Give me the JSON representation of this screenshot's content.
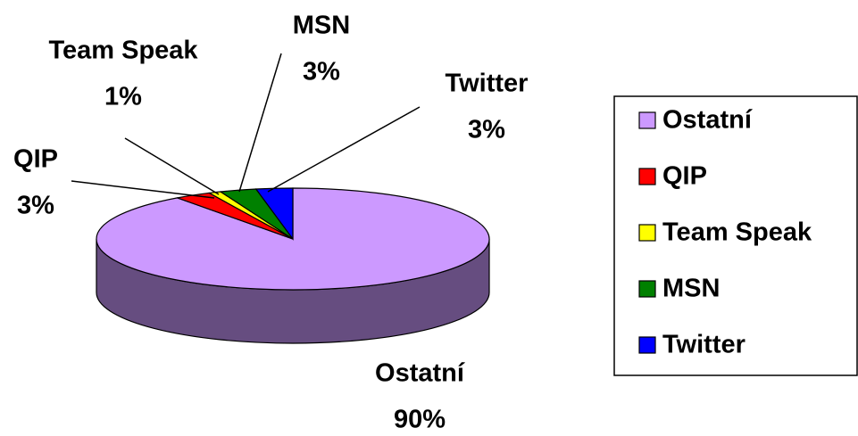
{
  "chart_data": {
    "type": "pie",
    "categories": [
      "Ostatní",
      "QIP",
      "Team Speak",
      "MSN",
      "Twitter"
    ],
    "values": [
      90,
      3,
      1,
      3,
      3
    ],
    "value_labels": [
      "90%",
      "3%",
      "1%",
      "3%",
      "3%"
    ],
    "colors": [
      "#cc99ff",
      "#ff0000",
      "#ffff00",
      "#008000",
      "#0000ff"
    ],
    "legend": "right"
  }
}
